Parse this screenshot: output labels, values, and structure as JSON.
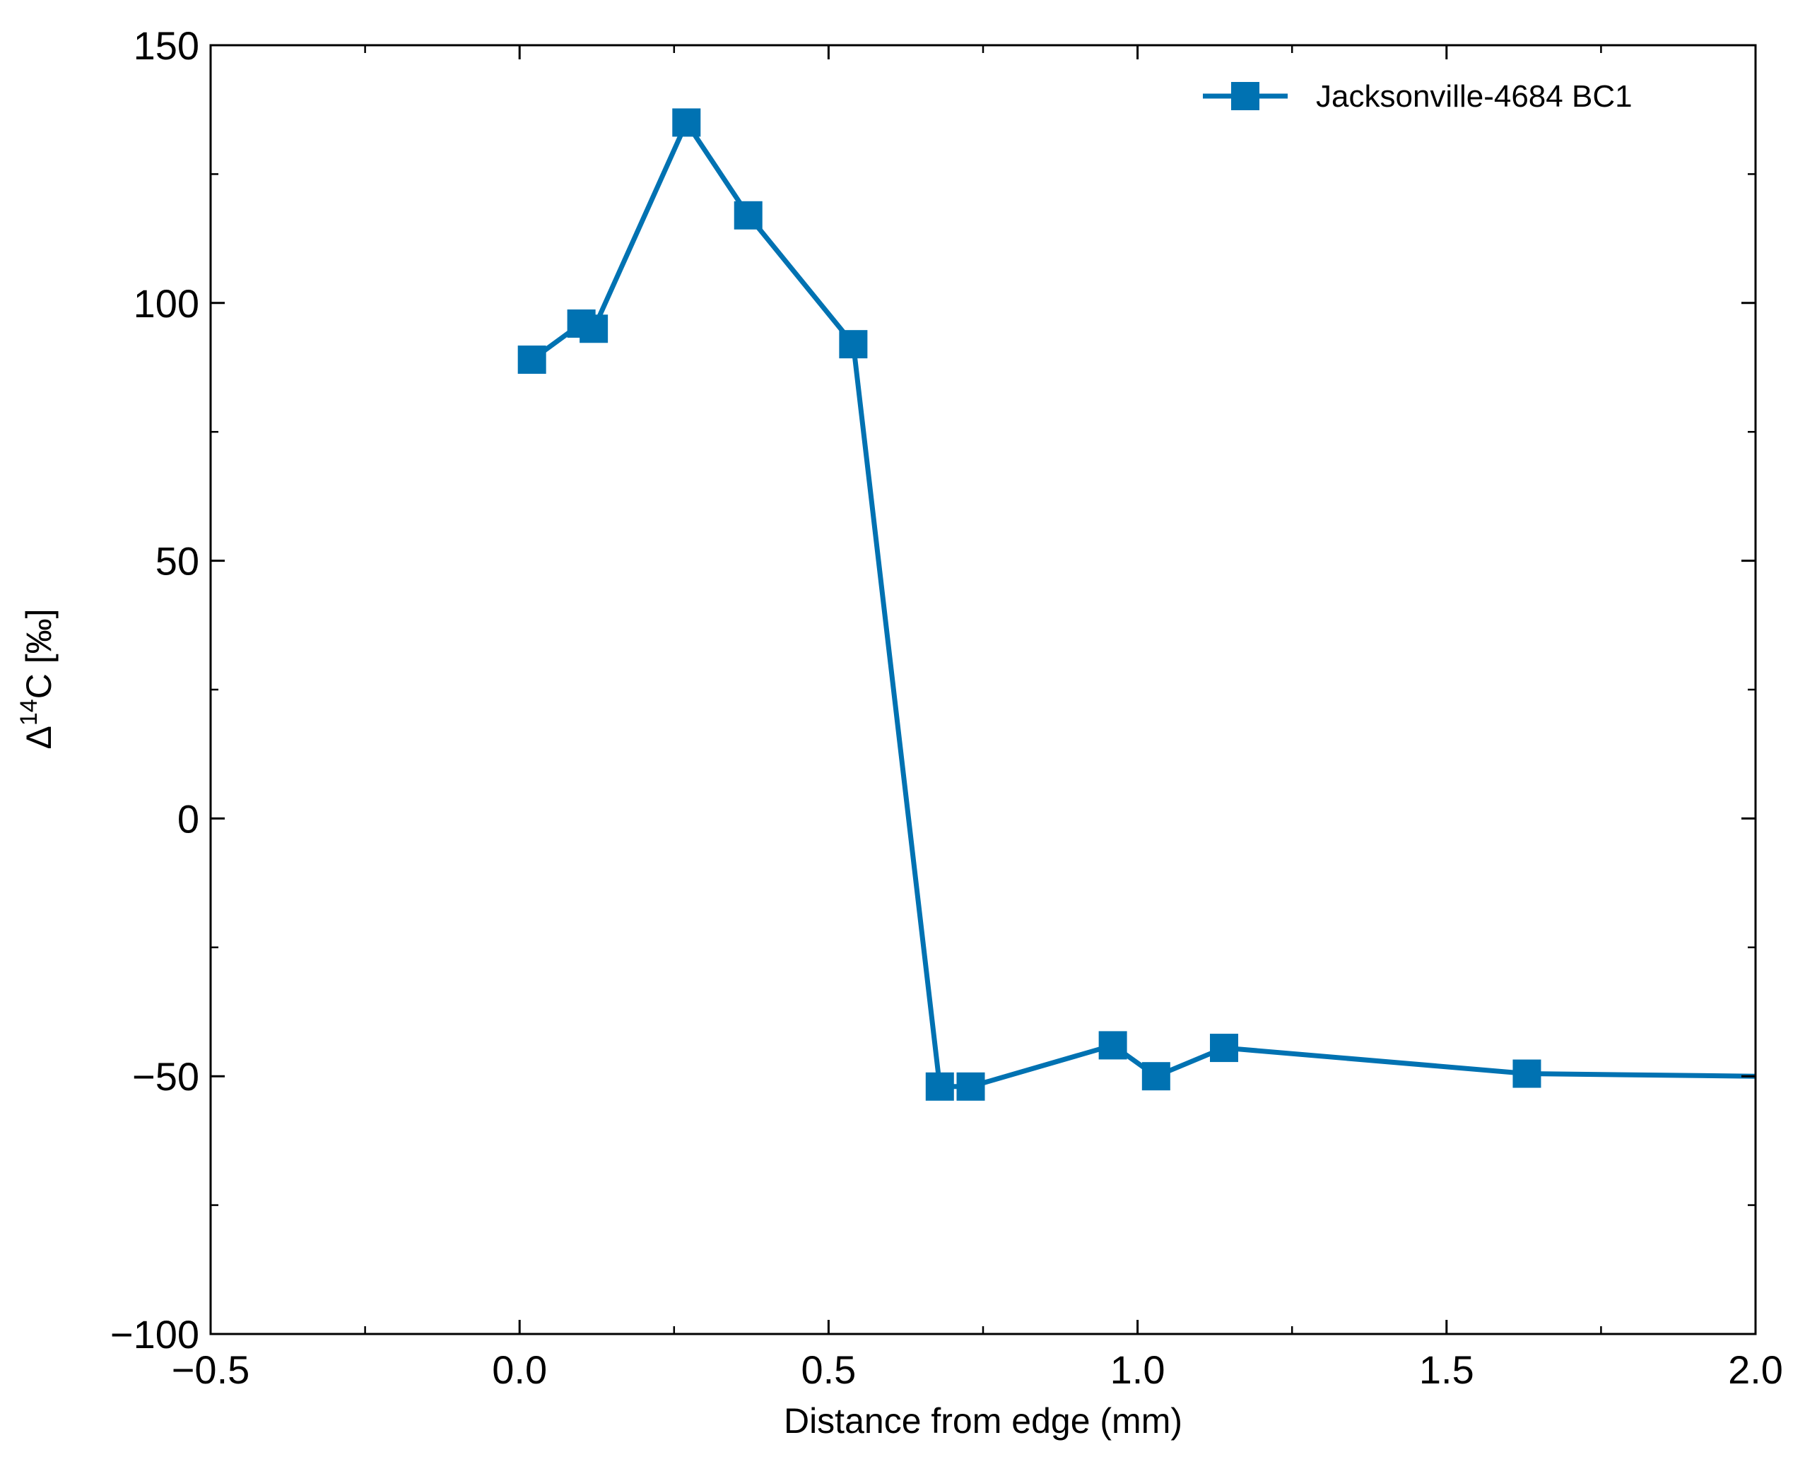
{
  "chart_data": {
    "type": "line",
    "title": "",
    "xlabel": "Distance from edge (mm)",
    "ylabel_parts": {
      "prefix": "Δ",
      "superscript": "14",
      "suffix": "C [‰]"
    },
    "xlim": [
      -0.5,
      2.0
    ],
    "ylim": [
      -100,
      150
    ],
    "x_ticks": [
      -0.5,
      0.0,
      0.5,
      1.0,
      1.5,
      2.0
    ],
    "x_tick_labels": [
      "−0.5",
      "0.0",
      "0.5",
      "1.0",
      "1.5",
      "2.0"
    ],
    "y_ticks": [
      -100,
      -50,
      0,
      50,
      100,
      150
    ],
    "y_tick_labels": [
      "−100",
      "−50",
      "0",
      "50",
      "100",
      "150"
    ],
    "x_minor_ticks": [
      -0.25,
      0.25,
      0.75,
      1.25,
      1.75
    ],
    "y_minor_ticks": [
      -75,
      -25,
      25,
      75,
      125
    ],
    "grid": false,
    "legend_position": "top-right",
    "series": [
      {
        "name": "Jacksonville-4684 BC1",
        "color": "#0072b2",
        "marker": "square",
        "x": [
          0.02,
          0.1,
          0.12,
          0.27,
          0.37,
          0.54,
          0.68,
          0.73,
          0.96,
          1.03,
          1.14,
          1.63,
          2.0
        ],
        "y": [
          89,
          96,
          95,
          135,
          117,
          92,
          -52,
          -52,
          -44,
          -50,
          -44.5,
          -49.5,
          -50
        ],
        "markers_visible": [
          true,
          true,
          true,
          true,
          true,
          true,
          true,
          true,
          true,
          true,
          true,
          true,
          false
        ]
      }
    ]
  }
}
